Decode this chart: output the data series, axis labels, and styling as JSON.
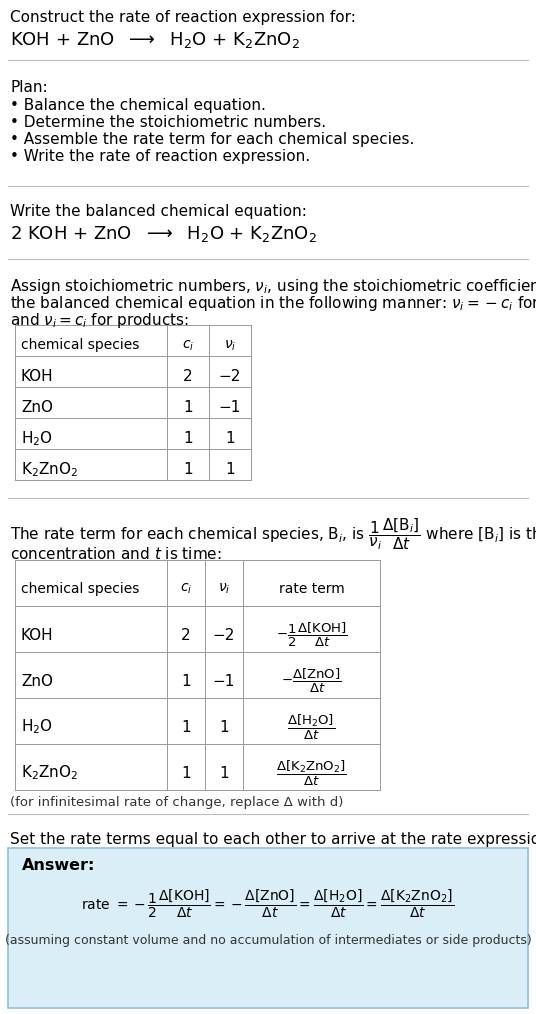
{
  "title_line1": "Construct the rate of reaction expression for:",
  "plan_header": "Plan:",
  "plan_items": [
    "• Balance the chemical equation.",
    "• Determine the stoichiometric numbers.",
    "• Assemble the rate term for each chemical species.",
    "• Write the rate of reaction expression."
  ],
  "balanced_header": "Write the balanced chemical equation:",
  "table1_rows": [
    [
      "KOH",
      "2",
      "−2"
    ],
    [
      "ZnO",
      "1",
      "−1"
    ],
    [
      "H₂O",
      "1",
      "1"
    ],
    [
      "K₂ZnO₂",
      "1",
      "1"
    ]
  ],
  "table2_rows": [
    [
      "KOH",
      "2",
      "−2"
    ],
    [
      "ZnO",
      "1",
      "−1"
    ],
    [
      "H₂O",
      "1",
      "1"
    ],
    [
      "K₂ZnO₂",
      "1",
      "1"
    ]
  ],
  "infinitesimal_note": "(for infinitesimal rate of change, replace Δ with d)",
  "set_equal_text": "Set the rate terms equal to each other to arrive at the rate expression:",
  "answer_label": "Answer:",
  "answer_box_color": "#daeef8",
  "assumption_note": "(assuming constant volume and no accumulation of intermediates or side products)",
  "bg_color": "#ffffff",
  "separator_color": "#bbbbbb"
}
